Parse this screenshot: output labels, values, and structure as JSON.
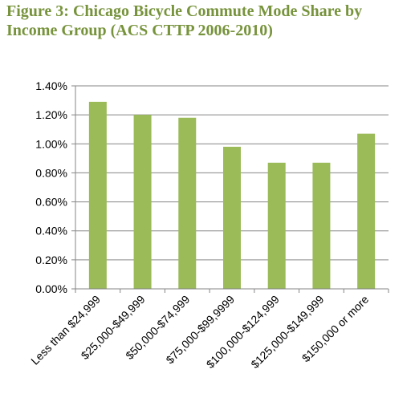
{
  "title": "Figure 3: Chicago Bicycle Commute Mode Share by Income Group (ACS CTTP 2006-2010)",
  "chart_data": {
    "type": "bar",
    "title": "Figure 3: Chicago Bicycle Commute Mode Share by Income Group (ACS CTTP 2006-2010)",
    "categories": [
      "Less than $24,999",
      "$25,000-$49,999",
      "$50,000-$74,999",
      "$75,000-$99,9999",
      "$100,000-$124,999",
      "$125,000-$149,999",
      "$150,000 or more"
    ],
    "values": [
      1.29,
      1.2,
      1.18,
      0.98,
      0.87,
      0.87,
      1.07
    ],
    "value_unit": "%",
    "xlabel": "",
    "ylabel": "",
    "ylim": [
      0,
      1.4
    ],
    "yticks": [
      "0.00%",
      "0.20%",
      "0.40%",
      "0.60%",
      "0.80%",
      "1.00%",
      "1.20%",
      "1.40%"
    ],
    "grid": true,
    "bar_color": "#9BBB59",
    "gridline_color": "#868686"
  }
}
